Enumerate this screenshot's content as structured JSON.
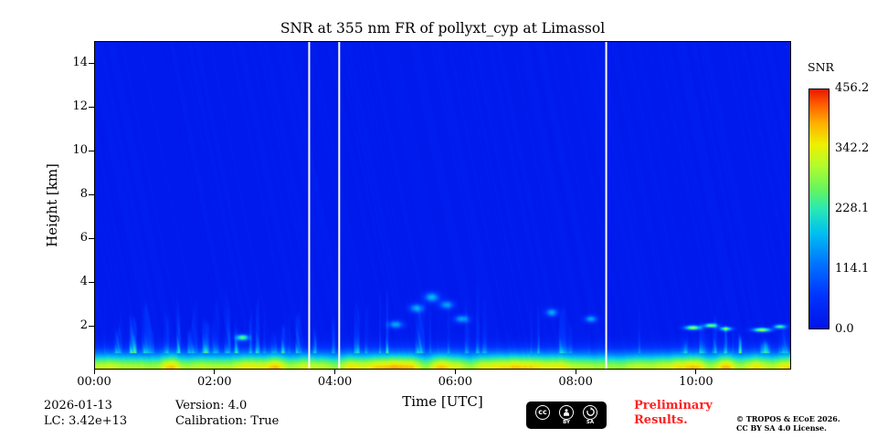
{
  "footer": {
    "date": "2026-01-13",
    "lc": "LC: 3.42e+13",
    "version": "Version: 4.0",
    "calibration": "Calibration: True",
    "preliminary_line1": "Preliminary",
    "preliminary_line2": "Results.",
    "preliminary_color": "#ff2020",
    "copyright_line1": "© TROPOS & ECoE 2026.",
    "copyright_line2": "CC BY SA 4.0 License.",
    "cc_badge": {
      "cc_text": "cc",
      "cc_caption": "",
      "labels": [
        "BY",
        "SA"
      ]
    }
  },
  "chart_data": {
    "type": "heatmap",
    "title": "SNR at 355 nm FR of pollyxt_cyp at Limassol",
    "xlabel": "Time [UTC]",
    "ylabel": "Height [km]",
    "x_ticks": [
      "00:00",
      "02:00",
      "04:00",
      "06:00",
      "08:00",
      "10:00"
    ],
    "x_tick_hours": [
      0,
      2,
      4,
      6,
      8,
      10
    ],
    "x_range_hours": [
      0,
      11.58
    ],
    "y_ticks_km": [
      2,
      4,
      6,
      8,
      10,
      12,
      14
    ],
    "y_range_km": [
      0,
      15
    ],
    "grid": false,
    "colorbar": {
      "label": "SNR",
      "tick_labels": [
        "456.2",
        "342.2",
        "228.1",
        "114.1",
        "0.0"
      ],
      "tick_values": [
        456.2,
        342.2,
        228.1,
        114.1,
        0.0
      ],
      "vmin": 0.0,
      "vmax": 456.2,
      "colormap_stops": [
        {
          "p": 0.0,
          "c": "#0013e8"
        },
        {
          "p": 0.14,
          "c": "#0034ff"
        },
        {
          "p": 0.28,
          "c": "#0078ff"
        },
        {
          "p": 0.4,
          "c": "#00c0f0"
        },
        {
          "p": 0.5,
          "c": "#2ae8b4"
        },
        {
          "p": 0.58,
          "c": "#63f55f"
        },
        {
          "p": 0.68,
          "c": "#b2fc2e"
        },
        {
          "p": 0.77,
          "c": "#eef000"
        },
        {
          "p": 0.86,
          "c": "#ffae00"
        },
        {
          "p": 0.94,
          "c": "#ff5a00"
        },
        {
          "p": 1.0,
          "c": "#e81800"
        }
      ]
    },
    "background_snr": 16,
    "surface_layer": {
      "peak_snr": 330,
      "scale_height_km": 0.72
    },
    "gap_times_hours": [
      3.55,
      4.05,
      8.5
    ],
    "streak_regions": [
      {
        "t0": 0.15,
        "t1": 3.5,
        "top_km": 4.3,
        "density": 0.55,
        "snr": 150
      },
      {
        "t0": 3.6,
        "t1": 4.0,
        "top_km": 3.2,
        "density": 0.5,
        "snr": 130
      },
      {
        "t0": 4.3,
        "t1": 6.7,
        "top_km": 4.4,
        "density": 0.42,
        "snr": 135
      },
      {
        "t0": 7.2,
        "t1": 9.1,
        "top_km": 3.7,
        "density": 0.4,
        "snr": 115
      },
      {
        "t0": 9.7,
        "t1": 11.58,
        "top_km": 2.6,
        "density": 0.5,
        "snr": 145
      }
    ],
    "bright_spots": [
      {
        "t": 2.45,
        "h": 1.45,
        "tw": 0.1,
        "hw": 0.14,
        "snr": 250
      },
      {
        "t": 5.0,
        "h": 2.05,
        "tw": 0.12,
        "hw": 0.18,
        "snr": 150
      },
      {
        "t": 5.35,
        "h": 2.8,
        "tw": 0.12,
        "hw": 0.2,
        "snr": 150
      },
      {
        "t": 5.6,
        "h": 3.3,
        "tw": 0.12,
        "hw": 0.22,
        "snr": 165
      },
      {
        "t": 5.85,
        "h": 2.95,
        "tw": 0.12,
        "hw": 0.2,
        "snr": 140
      },
      {
        "t": 6.1,
        "h": 2.3,
        "tw": 0.12,
        "hw": 0.18,
        "snr": 150
      },
      {
        "t": 7.6,
        "h": 2.6,
        "tw": 0.1,
        "hw": 0.18,
        "snr": 150
      },
      {
        "t": 8.25,
        "h": 2.3,
        "tw": 0.1,
        "hw": 0.16,
        "snr": 150
      },
      {
        "t": 9.95,
        "h": 1.9,
        "tw": 0.13,
        "hw": 0.11,
        "snr": 290
      },
      {
        "t": 10.25,
        "h": 2.0,
        "tw": 0.11,
        "hw": 0.1,
        "snr": 270
      },
      {
        "t": 10.5,
        "h": 1.85,
        "tw": 0.1,
        "hw": 0.1,
        "snr": 250
      },
      {
        "t": 11.1,
        "h": 1.8,
        "tw": 0.15,
        "hw": 0.1,
        "snr": 290
      },
      {
        "t": 11.4,
        "h": 1.95,
        "tw": 0.1,
        "hw": 0.1,
        "snr": 240
      }
    ],
    "noise_seed": 7
  }
}
